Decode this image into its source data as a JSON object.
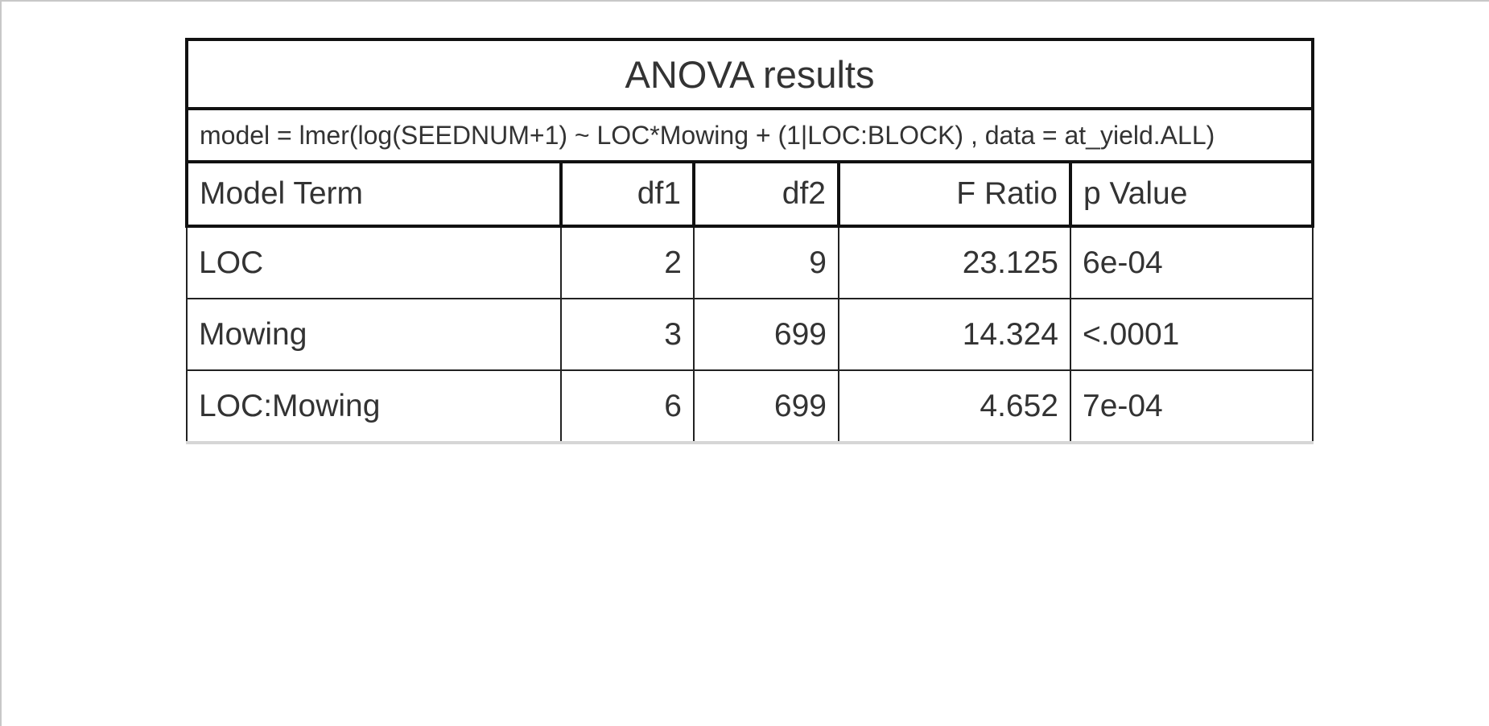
{
  "table": {
    "title": "ANOVA results",
    "subtitle": "model = lmer(log(SEEDNUM+1) ~ LOC*Mowing + (1|LOC:BLOCK) , data = at_yield.ALL)",
    "columns": [
      "Model Term",
      "df1",
      "df2",
      "F Ratio",
      "p Value"
    ],
    "rows": [
      {
        "term": "LOC",
        "df1": "2",
        "df2": "9",
        "f_ratio": "23.125",
        "p_value": "6e-04"
      },
      {
        "term": "Mowing",
        "df1": "3",
        "df2": "699",
        "f_ratio": "14.324",
        "p_value": "<.0001"
      },
      {
        "term": "LOC:Mowing",
        "df1": "6",
        "df2": "699",
        "f_ratio": "4.652",
        "p_value": "7e-04"
      }
    ]
  }
}
